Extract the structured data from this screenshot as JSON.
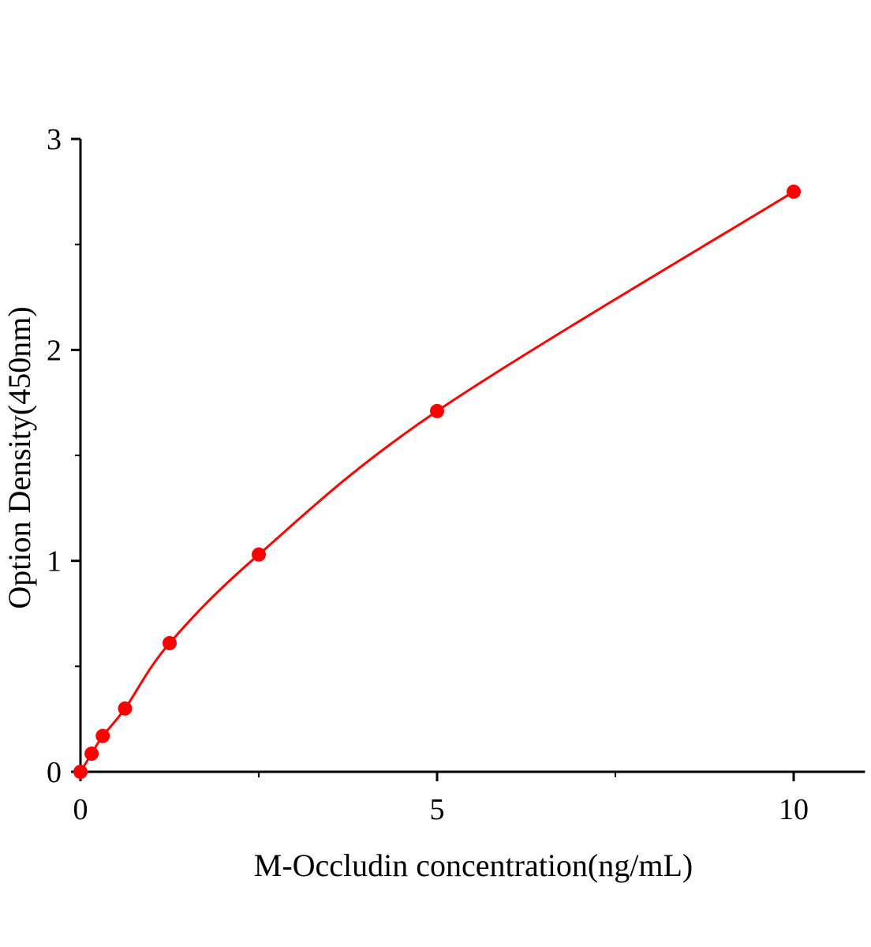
{
  "chart_data": {
    "type": "line",
    "title": "",
    "xlabel": "M-Occludin concentration(ng/mL)",
    "ylabel": "Option Density(450nm)",
    "xlim": [
      0,
      11
    ],
    "ylim": [
      0,
      3
    ],
    "x_ticks": [
      0,
      5,
      10
    ],
    "x_tick_labels": [
      "0",
      "5",
      "10"
    ],
    "x_minor_ticks": [
      2.5,
      7.5
    ],
    "y_ticks": [
      0,
      1,
      2,
      3
    ],
    "y_tick_labels": [
      "0",
      "1",
      "2",
      "3"
    ],
    "y_minor_ticks": [
      0.5,
      1.5,
      2.5
    ],
    "grid": false,
    "series": [
      {
        "color": "#ff0000",
        "markers": "filled-circle",
        "x": [
          0,
          0.156,
          0.3125,
          0.625,
          1.25,
          2.5,
          5,
          10
        ],
        "y": [
          0.0,
          0.086,
          0.17,
          0.3,
          0.61,
          1.03,
          1.71,
          2.75
        ]
      }
    ]
  }
}
